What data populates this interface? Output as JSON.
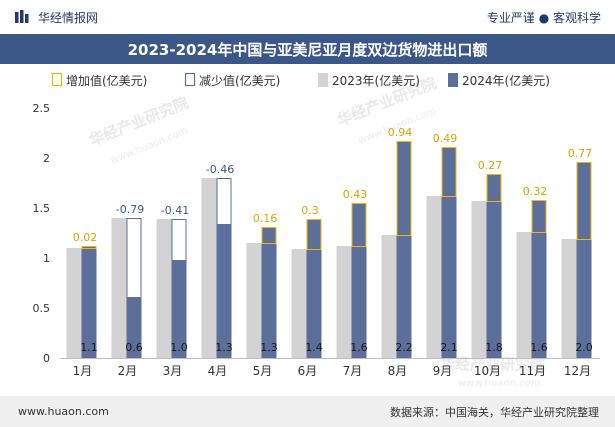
{
  "header": {
    "brand_name": "华经情报网",
    "tagline": "专业严谨 ● 客观科学",
    "logo_icon": "huajing-logo-icon"
  },
  "title": "2023-2024年中国与亚美尼亚月度双边货物进出口额",
  "footer": {
    "url": "www.huaon.com",
    "source": "数据来源：中国海关，华经产业研究院整理"
  },
  "watermarks": [
    "华经产业研究院",
    "www.huaon.com"
  ],
  "colors": {
    "s2023": "#d3d3d3",
    "s2024": "#5b6f9a",
    "increase": "#f2b705",
    "decrease": "#5b6f9a",
    "title_bg": "#3a5788"
  },
  "chart_data": {
    "type": "bar",
    "categories": [
      "1月",
      "2月",
      "3月",
      "4月",
      "5月",
      "6月",
      "7月",
      "8月",
      "9月",
      "10月",
      "11月",
      "12月"
    ],
    "series": [
      {
        "name": "2023年(亿美元)",
        "values": [
          1.1,
          1.4,
          1.39,
          1.8,
          1.15,
          1.09,
          1.12,
          1.23,
          1.62,
          1.57,
          1.26,
          1.19
        ]
      },
      {
        "name": "2024年(亿美元)",
        "values": [
          1.12,
          0.61,
          0.98,
          1.34,
          1.31,
          1.39,
          1.55,
          2.17,
          2.11,
          1.84,
          1.58,
          1.96
        ]
      }
    ],
    "bar_labels_2024": [
      "1.1",
      "0.6",
      "1.0",
      "1.3",
      "1.3",
      "1.4",
      "1.6",
      "2.2",
      "2.1",
      "1.8",
      "1.6",
      "2.0"
    ],
    "change_labels": [
      "0.02",
      "-0.79",
      "-0.41",
      "-0.46",
      "0.16",
      "0.3",
      "0.43",
      "0.94",
      "0.49",
      "0.27",
      "0.32",
      "0.77"
    ],
    "legend": [
      {
        "label": "增加值(亿美元)",
        "icon": "increase-outline-icon"
      },
      {
        "label": "减少值(亿美元)",
        "icon": "decrease-outline-icon"
      },
      {
        "label": "2023年(亿美元)",
        "icon": "bar-2023-swatch"
      },
      {
        "label": "2024年(亿美元)",
        "icon": "bar-2024-swatch"
      }
    ],
    "legend_position": "top-left",
    "y_ticks": [
      "0",
      "0.5",
      "1",
      "1.5",
      "2",
      "2.5"
    ],
    "ylim": [
      0,
      2.5
    ],
    "grid": false
  }
}
